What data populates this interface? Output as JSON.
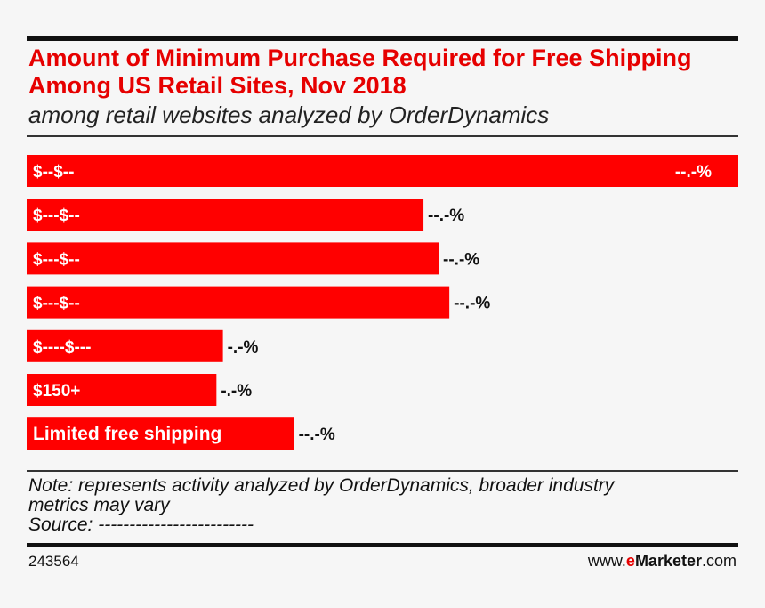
{
  "chart_data": {
    "type": "bar",
    "orientation": "horizontal",
    "title": "Amount of Minimum Purchase Required for Free Shipping Among US Retail Sites, Nov 2018",
    "subtitle": "among retail websites analyzed by OrderDynamics",
    "categories": [
      "$--$--",
      "$---$--",
      "$---$--",
      "$---$--",
      "$----$---",
      "$150+",
      "Limited free shipping"
    ],
    "values": [
      33.0,
      18.4,
      19.1,
      19.6,
      9.1,
      8.8,
      12.4
    ],
    "value_labels": [
      "--.-%",
      "--.-%",
      "--.-%",
      "--.-%",
      "-.-%",
      "-.-%",
      "--.-%"
    ],
    "xlim": [
      0,
      33.0
    ],
    "unit": "%",
    "bar_color": "#ff0000",
    "accent_color": "#e60000"
  },
  "note": {
    "line1": "Note: represents activity analyzed by OrderDynamics, broader industry",
    "line2": "metrics may vary",
    "source": "Source: -------------------------"
  },
  "footer": {
    "chart_id": "243564",
    "brand_prefix": "www.",
    "brand_e": "e",
    "brand_name": "Marketer",
    "brand_suffix": ".com"
  }
}
